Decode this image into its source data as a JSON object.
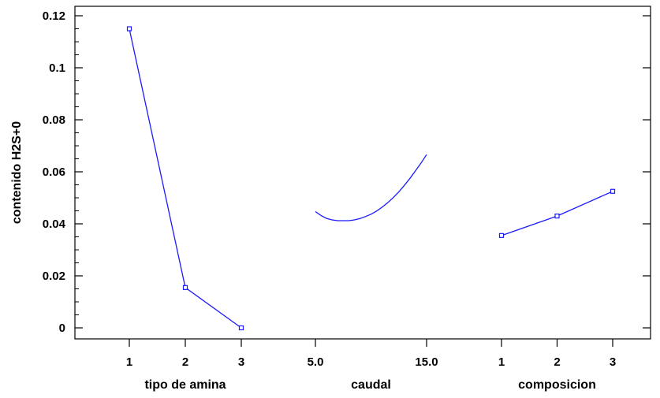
{
  "chart_data": {
    "type": "line",
    "ylabel": "contenido H2S+0",
    "ylim": [
      0,
      0.12
    ],
    "yticks": [
      0,
      0.02,
      0.04,
      0.06,
      0.08,
      0.1,
      0.12
    ],
    "ytick_labels": [
      "0",
      "0.02",
      "0.04",
      "0.06",
      "0.08",
      "0.1",
      "0.12"
    ],
    "grid": false,
    "line_color": "#1a1aff",
    "panels": [
      {
        "xlabel": "tipo de amina",
        "x": [
          1,
          2,
          3
        ],
        "tick_labels": [
          "1",
          "2",
          "3"
        ],
        "values": [
          0.115,
          0.0155,
          0.0
        ],
        "markers": true
      },
      {
        "xlabel": "caudal",
        "x": [
          5.0,
          5.5,
          6.0,
          6.5,
          7.0,
          7.5,
          8.0,
          8.5,
          9.0,
          9.5,
          10.0,
          10.5,
          11.0,
          11.5,
          12.0,
          12.5,
          13.0,
          13.5,
          14.0,
          14.5,
          15.0
        ],
        "tick_labels": [
          "5.0",
          "15.0"
        ],
        "tick_values": [
          5.0,
          15.0
        ],
        "values": [
          0.0447,
          0.0432,
          0.0421,
          0.0415,
          0.0412,
          0.0412,
          0.0412,
          0.0415,
          0.042,
          0.0428,
          0.0437,
          0.0449,
          0.0464,
          0.0481,
          0.0501,
          0.0523,
          0.0548,
          0.0575,
          0.0604,
          0.0634,
          0.0666
        ],
        "markers": false
      },
      {
        "xlabel": "composicion",
        "x": [
          1,
          2,
          3
        ],
        "tick_labels": [
          "1",
          "2",
          "3"
        ],
        "values": [
          0.0355,
          0.043,
          0.0525
        ],
        "markers": true
      }
    ]
  }
}
